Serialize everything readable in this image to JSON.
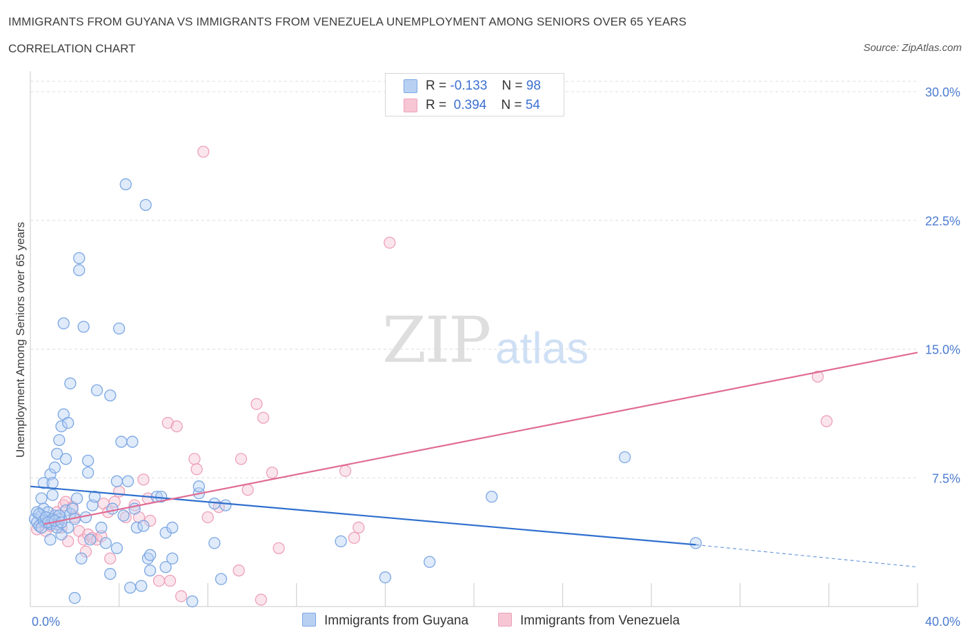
{
  "title": "IMMIGRANTS FROM GUYANA VS IMMIGRANTS FROM VENEZUELA UNEMPLOYMENT AMONG SENIORS OVER 65 YEARS",
  "subtitle": "CORRELATION CHART",
  "source": "Source: ZipAtlas.com",
  "watermark": {
    "zip": "ZIP",
    "atlas": "atlas"
  },
  "legend": {
    "series1": {
      "r_label": "R =",
      "r_value": "-0.133",
      "n_label": "N =",
      "n_value": "98"
    },
    "series2": {
      "r_label": "R =",
      "r_value": "0.394",
      "n_label": "N =",
      "n_value": "54"
    }
  },
  "colors": {
    "guyana_fill": "#b8d1f3",
    "guyana_stroke": "#7aa6e3",
    "guyana_line": "#2f6fce",
    "venezuela_fill": "#f7c6d5",
    "venezuela_stroke": "#eda0b8",
    "venezuela_line": "#e06b93",
    "tick_text": "#4a7bd0",
    "grid": "#dcdcdc"
  },
  "chart_data": {
    "type": "scatter",
    "title": "IMMIGRANTS FROM GUYANA VS IMMIGRANTS FROM VENEZUELA UNEMPLOYMENT AMONG SENIORS OVER 65 YEARS",
    "xlabel": "",
    "ylabel": "Unemployment Among Seniors over 65 years",
    "xlim": [
      0,
      40
    ],
    "ylim": [
      0,
      30
    ],
    "x_tick_labels": [
      "0.0%",
      "40.0%"
    ],
    "y_ticks": [
      7.5,
      15.0,
      22.5,
      30.0
    ],
    "y_tick_labels": [
      "7.5%",
      "15.0%",
      "22.5%",
      "30.0%"
    ],
    "grid": true,
    "legend_position": "bottom",
    "series": [
      {
        "name": "Immigrants from Guyana",
        "trend": {
          "x": [
            0,
            30
          ],
          "y": [
            7.0,
            3.6
          ],
          "dashed_to": [
            40,
            2.3
          ]
        },
        "points": [
          [
            0.2,
            5.1
          ],
          [
            0.3,
            4.9
          ],
          [
            0.3,
            5.5
          ],
          [
            0.4,
            4.7
          ],
          [
            0.5,
            5.3
          ],
          [
            0.5,
            6.3
          ],
          [
            0.6,
            5.7
          ],
          [
            0.6,
            7.2
          ],
          [
            0.7,
            4.9
          ],
          [
            0.8,
            5.5
          ],
          [
            0.8,
            5.0
          ],
          [
            0.9,
            7.7
          ],
          [
            0.9,
            3.9
          ],
          [
            1.0,
            6.5
          ],
          [
            1.0,
            7.2
          ],
          [
            1.1,
            8.1
          ],
          [
            1.1,
            5.3
          ],
          [
            1.2,
            8.9
          ],
          [
            1.2,
            4.8
          ],
          [
            1.3,
            9.7
          ],
          [
            1.3,
            5.1
          ],
          [
            1.4,
            10.5
          ],
          [
            1.4,
            4.2
          ],
          [
            1.5,
            11.2
          ],
          [
            1.5,
            16.5
          ],
          [
            1.6,
            5.6
          ],
          [
            1.6,
            8.6
          ],
          [
            1.7,
            10.7
          ],
          [
            1.7,
            4.6
          ],
          [
            1.8,
            13.0
          ],
          [
            1.8,
            5.4
          ],
          [
            1.9,
            5.7
          ],
          [
            2.0,
            5.1
          ],
          [
            2.0,
            0.5
          ],
          [
            2.1,
            6.3
          ],
          [
            2.2,
            19.6
          ],
          [
            2.2,
            20.3
          ],
          [
            2.3,
            2.8
          ],
          [
            2.4,
            16.3
          ],
          [
            2.5,
            5.2
          ],
          [
            2.6,
            8.5
          ],
          [
            2.6,
            7.8
          ],
          [
            2.7,
            3.9
          ],
          [
            2.8,
            5.9
          ],
          [
            2.9,
            6.4
          ],
          [
            3.0,
            12.6
          ],
          [
            3.2,
            4.6
          ],
          [
            3.4,
            3.7
          ],
          [
            3.6,
            12.3
          ],
          [
            3.6,
            1.9
          ],
          [
            3.7,
            5.7
          ],
          [
            3.9,
            7.3
          ],
          [
            3.9,
            3.4
          ],
          [
            4.0,
            16.2
          ],
          [
            4.1,
            9.6
          ],
          [
            4.2,
            5.3
          ],
          [
            4.3,
            24.6
          ],
          [
            4.4,
            7.3
          ],
          [
            4.5,
            1.1
          ],
          [
            4.6,
            9.6
          ],
          [
            4.7,
            5.7
          ],
          [
            4.8,
            4.6
          ],
          [
            5.0,
            1.2
          ],
          [
            5.1,
            4.7
          ],
          [
            5.2,
            23.4
          ],
          [
            5.3,
            2.8
          ],
          [
            5.4,
            3.0
          ],
          [
            5.4,
            2.1
          ],
          [
            5.7,
            6.4
          ],
          [
            5.9,
            6.4
          ],
          [
            6.1,
            4.3
          ],
          [
            6.1,
            2.3
          ],
          [
            6.4,
            4.6
          ],
          [
            6.4,
            2.8
          ],
          [
            7.3,
            0.3
          ],
          [
            7.6,
            6.6
          ],
          [
            7.6,
            7.0
          ],
          [
            8.3,
            3.7
          ],
          [
            8.3,
            6.0
          ],
          [
            8.6,
            1.6
          ],
          [
            8.8,
            5.9
          ],
          [
            14.0,
            3.8
          ],
          [
            16.0,
            1.7
          ],
          [
            18.0,
            2.6
          ],
          [
            26.8,
            8.7
          ],
          [
            20.8,
            6.4
          ],
          [
            30.0,
            3.7
          ],
          [
            0.4,
            5.4
          ],
          [
            0.6,
            5.0
          ],
          [
            0.7,
            5.2
          ],
          [
            0.9,
            4.8
          ],
          [
            1.0,
            5.1
          ],
          [
            1.2,
            4.6
          ],
          [
            1.3,
            5.3
          ],
          [
            0.5,
            4.6
          ],
          [
            0.8,
            4.9
          ],
          [
            1.1,
            5.0
          ],
          [
            1.4,
            4.9
          ]
        ]
      },
      {
        "name": "Immigrants from Venezuela",
        "trend": {
          "x": [
            0.6,
            40
          ],
          "y": [
            4.8,
            14.8
          ]
        },
        "points": [
          [
            0.3,
            4.5
          ],
          [
            0.5,
            4.9
          ],
          [
            0.7,
            4.4
          ],
          [
            0.9,
            4.7
          ],
          [
            1.0,
            5.0
          ],
          [
            1.2,
            5.5
          ],
          [
            1.4,
            4.6
          ],
          [
            1.5,
            5.9
          ],
          [
            1.6,
            6.1
          ],
          [
            1.7,
            3.8
          ],
          [
            1.9,
            5.8
          ],
          [
            2.0,
            5.2
          ],
          [
            2.2,
            4.4
          ],
          [
            2.4,
            3.9
          ],
          [
            2.5,
            3.2
          ],
          [
            2.6,
            4.2
          ],
          [
            2.8,
            4.0
          ],
          [
            3.0,
            3.9
          ],
          [
            3.2,
            4.1
          ],
          [
            3.3,
            6.0
          ],
          [
            3.5,
            5.5
          ],
          [
            3.6,
            2.8
          ],
          [
            3.8,
            6.1
          ],
          [
            4.0,
            6.7
          ],
          [
            4.3,
            5.2
          ],
          [
            4.7,
            5.9
          ],
          [
            4.9,
            5.2
          ],
          [
            5.1,
            7.4
          ],
          [
            5.3,
            6.3
          ],
          [
            5.4,
            5.0
          ],
          [
            5.8,
            1.5
          ],
          [
            6.2,
            10.7
          ],
          [
            6.3,
            1.5
          ],
          [
            6.6,
            10.5
          ],
          [
            6.8,
            0.6
          ],
          [
            7.4,
            8.6
          ],
          [
            7.5,
            8.0
          ],
          [
            7.8,
            26.5
          ],
          [
            8.0,
            5.2
          ],
          [
            8.5,
            5.8
          ],
          [
            9.4,
            2.1
          ],
          [
            9.5,
            8.6
          ],
          [
            9.8,
            6.8
          ],
          [
            10.2,
            11.8
          ],
          [
            10.4,
            0.4
          ],
          [
            10.5,
            11.0
          ],
          [
            10.9,
            7.8
          ],
          [
            11.2,
            3.4
          ],
          [
            14.2,
            7.9
          ],
          [
            14.6,
            4.0
          ],
          [
            14.8,
            4.6
          ],
          [
            16.2,
            21.2
          ],
          [
            35.5,
            13.4
          ],
          [
            35.9,
            10.8
          ]
        ]
      }
    ]
  },
  "bottom_legend": {
    "guyana": "Immigrants from Guyana",
    "venezuela": "Immigrants from Venezuela"
  }
}
